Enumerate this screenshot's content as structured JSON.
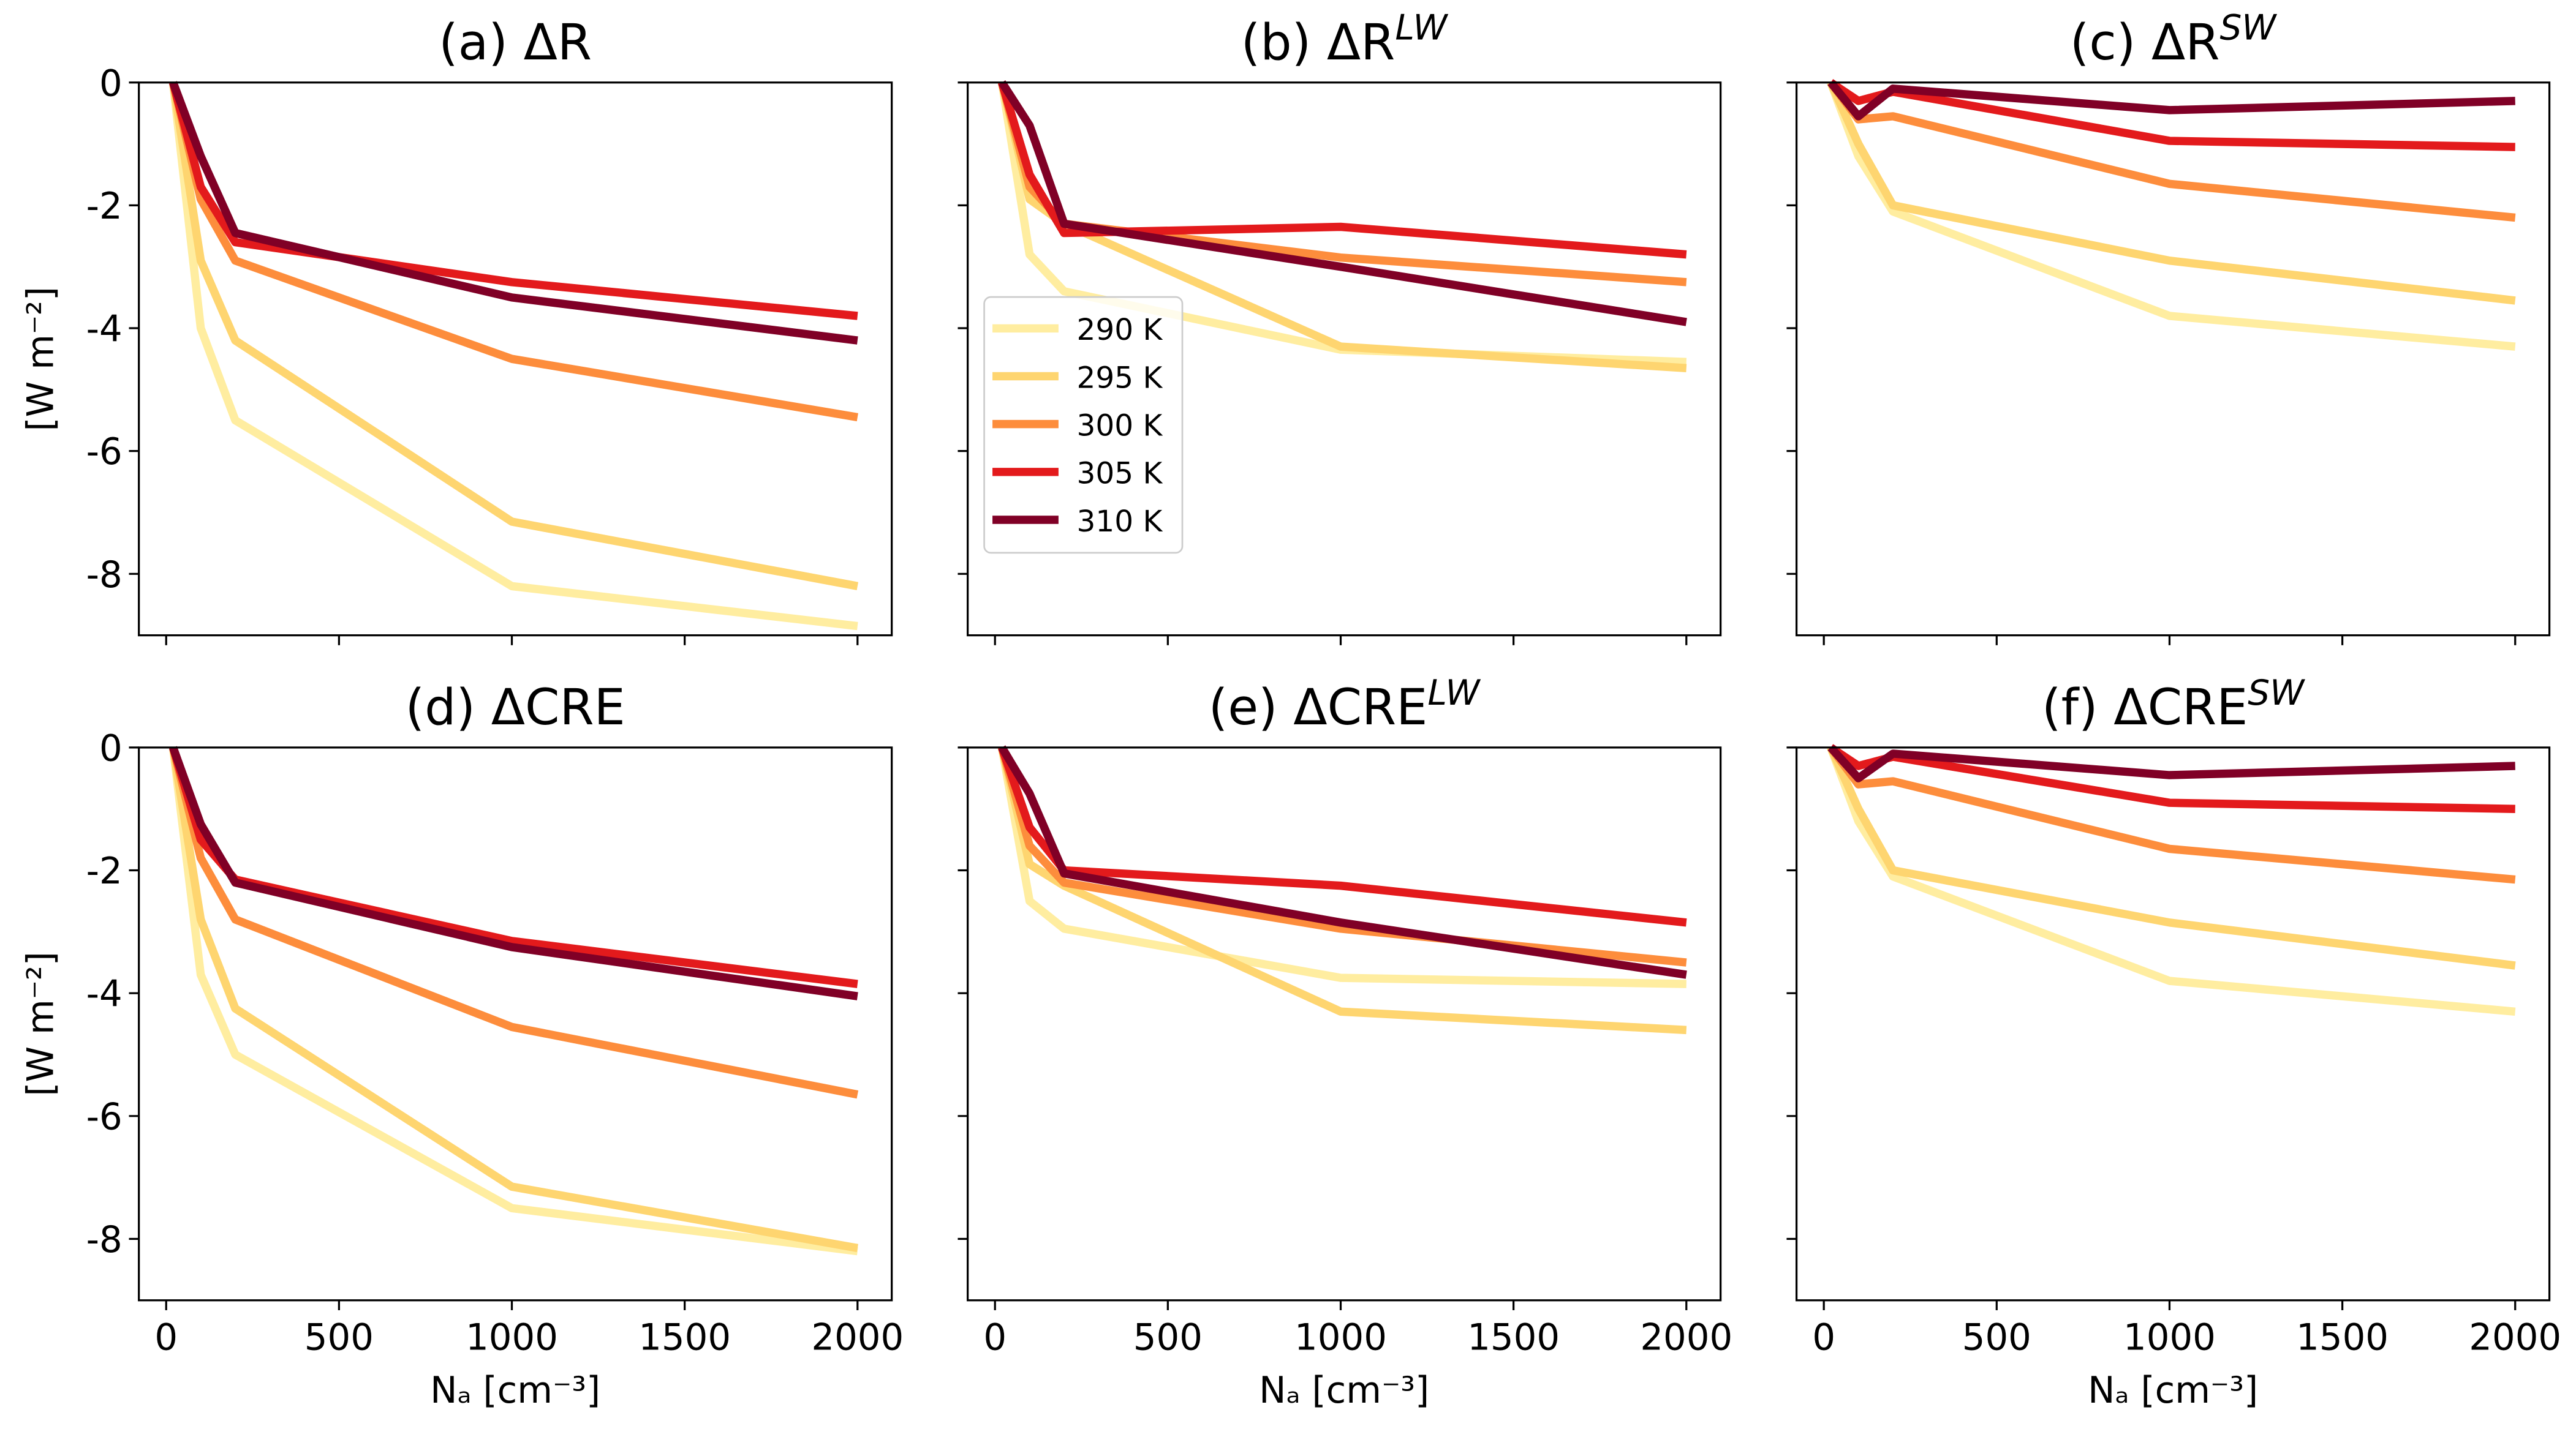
{
  "chart_data": [
    {
      "type": "line",
      "title": "(a) ΔR",
      "ylabel": "[W m⁻²]",
      "x": [
        20,
        100,
        200,
        1000,
        2000
      ],
      "xlim": [
        -79,
        2099
      ],
      "ylim": [
        -9,
        0
      ],
      "xticks": [
        0,
        500,
        1000,
        1500,
        2000
      ],
      "yticks": [
        0,
        -2,
        -4,
        -6,
        -8
      ],
      "show_xticklabels": false,
      "show_yticklabels": true,
      "series": [
        {
          "name": "290 K",
          "color": "#ffeda0",
          "values": [
            0,
            -4.0,
            -5.5,
            -8.2,
            -8.85
          ]
        },
        {
          "name": "295 K",
          "color": "#fed570",
          "values": [
            0,
            -2.9,
            -4.2,
            -7.15,
            -8.2
          ]
        },
        {
          "name": "300 K",
          "color": "#fd8d3c",
          "values": [
            0,
            -1.9,
            -2.9,
            -4.5,
            -5.45
          ]
        },
        {
          "name": "305 K",
          "color": "#e31a1c",
          "values": [
            0,
            -1.7,
            -2.6,
            -3.25,
            -3.8
          ]
        },
        {
          "name": "310 K",
          "color": "#800026",
          "values": [
            0,
            -1.2,
            -2.45,
            -3.5,
            -4.2
          ]
        }
      ]
    },
    {
      "type": "line",
      "title": "(b) ΔR",
      "title_sup": "LW",
      "x": [
        20,
        100,
        200,
        1000,
        2000
      ],
      "xlim": [
        -79,
        2099
      ],
      "ylim": [
        -9,
        0
      ],
      "xticks": [
        0,
        500,
        1000,
        1500,
        2000
      ],
      "yticks": [
        0,
        -2,
        -4,
        -6,
        -8
      ],
      "show_xticklabels": false,
      "show_yticklabels": false,
      "legend": "center left",
      "series": [
        {
          "name": "290 K",
          "color": "#ffeda0",
          "values": [
            0,
            -2.8,
            -3.4,
            -4.35,
            -4.55
          ]
        },
        {
          "name": "295 K",
          "color": "#fed570",
          "values": [
            0,
            -1.9,
            -2.3,
            -4.3,
            -4.65
          ]
        },
        {
          "name": "300 K",
          "color": "#fd8d3c",
          "values": [
            0,
            -1.7,
            -2.3,
            -2.85,
            -3.25
          ]
        },
        {
          "name": "305 K",
          "color": "#e31a1c",
          "values": [
            0,
            -1.5,
            -2.45,
            -2.35,
            -2.8
          ]
        },
        {
          "name": "310 K",
          "color": "#800026",
          "values": [
            0,
            -0.7,
            -2.3,
            -3.0,
            -3.9
          ]
        }
      ]
    },
    {
      "type": "line",
      "title": "(c) ΔR",
      "title_sup": "SW",
      "x": [
        20,
        100,
        200,
        1000,
        2000
      ],
      "xlim": [
        -79,
        2099
      ],
      "ylim": [
        -9,
        0
      ],
      "xticks": [
        0,
        500,
        1000,
        1500,
        2000
      ],
      "yticks": [
        0,
        -2,
        -4,
        -6,
        -8
      ],
      "show_xticklabels": false,
      "show_yticklabels": false,
      "series": [
        {
          "name": "290 K",
          "color": "#ffeda0",
          "values": [
            0,
            -1.2,
            -2.1,
            -3.8,
            -4.3
          ]
        },
        {
          "name": "295 K",
          "color": "#fed570",
          "values": [
            0,
            -1.0,
            -2.0,
            -2.9,
            -3.55
          ]
        },
        {
          "name": "300 K",
          "color": "#fd8d3c",
          "values": [
            0,
            -0.6,
            -0.55,
            -1.65,
            -2.2
          ]
        },
        {
          "name": "305 K",
          "color": "#e31a1c",
          "values": [
            0,
            -0.3,
            -0.15,
            -0.95,
            -1.05
          ]
        },
        {
          "name": "310 K",
          "color": "#800026",
          "values": [
            0,
            -0.55,
            -0.1,
            -0.45,
            -0.3
          ]
        }
      ]
    },
    {
      "type": "line",
      "title": "(d) ΔCRE",
      "ylabel": "[W m⁻²]",
      "xlabel": "Nₐ [cm⁻³]",
      "x": [
        20,
        100,
        200,
        1000,
        2000
      ],
      "xlim": [
        -79,
        2099
      ],
      "ylim": [
        -9,
        0
      ],
      "xticks": [
        0,
        500,
        1000,
        1500,
        2000
      ],
      "yticks": [
        0,
        -2,
        -4,
        -6,
        -8
      ],
      "show_xticklabels": true,
      "show_yticklabels": true,
      "series": [
        {
          "name": "290 K",
          "color": "#ffeda0",
          "values": [
            0,
            -3.7,
            -5.0,
            -7.5,
            -8.2
          ]
        },
        {
          "name": "295 K",
          "color": "#fed570",
          "values": [
            0,
            -2.8,
            -4.25,
            -7.15,
            -8.15
          ]
        },
        {
          "name": "300 K",
          "color": "#fd8d3c",
          "values": [
            0,
            -1.8,
            -2.8,
            -4.55,
            -5.65
          ]
        },
        {
          "name": "305 K",
          "color": "#e31a1c",
          "values": [
            0,
            -1.5,
            -2.15,
            -3.15,
            -3.85
          ]
        },
        {
          "name": "310 K",
          "color": "#800026",
          "values": [
            0,
            -1.25,
            -2.2,
            -3.25,
            -4.05
          ]
        }
      ]
    },
    {
      "type": "line",
      "title": "(e) ΔCRE",
      "title_sup": "LW",
      "xlabel": "Nₐ [cm⁻³]",
      "x": [
        20,
        100,
        200,
        1000,
        2000
      ],
      "xlim": [
        -79,
        2099
      ],
      "ylim": [
        -9,
        0
      ],
      "xticks": [
        0,
        500,
        1000,
        1500,
        2000
      ],
      "yticks": [
        0,
        -2,
        -4,
        -6,
        -8
      ],
      "show_xticklabels": true,
      "show_yticklabels": false,
      "series": [
        {
          "name": "290 K",
          "color": "#ffeda0",
          "values": [
            0,
            -2.5,
            -2.95,
            -3.75,
            -3.85
          ]
        },
        {
          "name": "295 K",
          "color": "#fed570",
          "values": [
            0,
            -1.9,
            -2.25,
            -4.3,
            -4.6
          ]
        },
        {
          "name": "300 K",
          "color": "#fd8d3c",
          "values": [
            0,
            -1.6,
            -2.2,
            -2.95,
            -3.5
          ]
        },
        {
          "name": "305 K",
          "color": "#e31a1c",
          "values": [
            0,
            -1.3,
            -2.0,
            -2.25,
            -2.85
          ]
        },
        {
          "name": "310 K",
          "color": "#800026",
          "values": [
            0,
            -0.75,
            -2.05,
            -2.85,
            -3.7
          ]
        }
      ]
    },
    {
      "type": "line",
      "title": "(f) ΔCRE",
      "title_sup": "SW",
      "xlabel": "Nₐ [cm⁻³]",
      "x": [
        20,
        100,
        200,
        1000,
        2000
      ],
      "xlim": [
        -79,
        2099
      ],
      "ylim": [
        -9,
        0
      ],
      "xticks": [
        0,
        500,
        1000,
        1500,
        2000
      ],
      "yticks": [
        0,
        -2,
        -4,
        -6,
        -8
      ],
      "show_xticklabels": true,
      "show_yticklabels": false,
      "series": [
        {
          "name": "290 K",
          "color": "#ffeda0",
          "values": [
            0,
            -1.2,
            -2.1,
            -3.8,
            -4.3
          ]
        },
        {
          "name": "295 K",
          "color": "#fed570",
          "values": [
            0,
            -1.0,
            -2.0,
            -2.85,
            -3.55
          ]
        },
        {
          "name": "300 K",
          "color": "#fd8d3c",
          "values": [
            0,
            -0.6,
            -0.55,
            -1.65,
            -2.15
          ]
        },
        {
          "name": "305 K",
          "color": "#e31a1c",
          "values": [
            0,
            -0.3,
            -0.15,
            -0.9,
            -1.0
          ]
        },
        {
          "name": "310 K",
          "color": "#800026",
          "values": [
            0,
            -0.5,
            -0.1,
            -0.45,
            -0.3
          ]
        }
      ]
    }
  ]
}
